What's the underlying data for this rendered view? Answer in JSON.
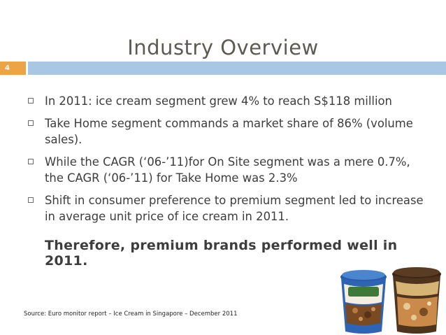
{
  "slide": {
    "title": "Industry Overview",
    "page_number": "4",
    "bullets": [
      "In 2011: ice cream segment grew 4% to reach S$118 million",
      "Take Home segment commands a market share of 86% (volume sales).",
      "While the CAGR (‘06-’11)for On Site segment was a mere 0.7%, the CAGR (‘06-’11) for Take Home was 2.3%",
      "Shift in consumer preference to premium segment led to increase in average unit price of ice cream in 2011."
    ],
    "conclusion": "Therefore, premium brands performed well in 2011.",
    "source": "Source: Euro monitor report – Ice Cream in Singapore – December 2011"
  },
  "colors": {
    "title": "#5c5a52",
    "badge": "#eda445",
    "title_bar": "#a7c7e4",
    "body_text": "#3d3d3d"
  },
  "image": {
    "description_icons": [
      "ice-cream-tub-icon",
      "ice-cream-tub-icon"
    ]
  }
}
